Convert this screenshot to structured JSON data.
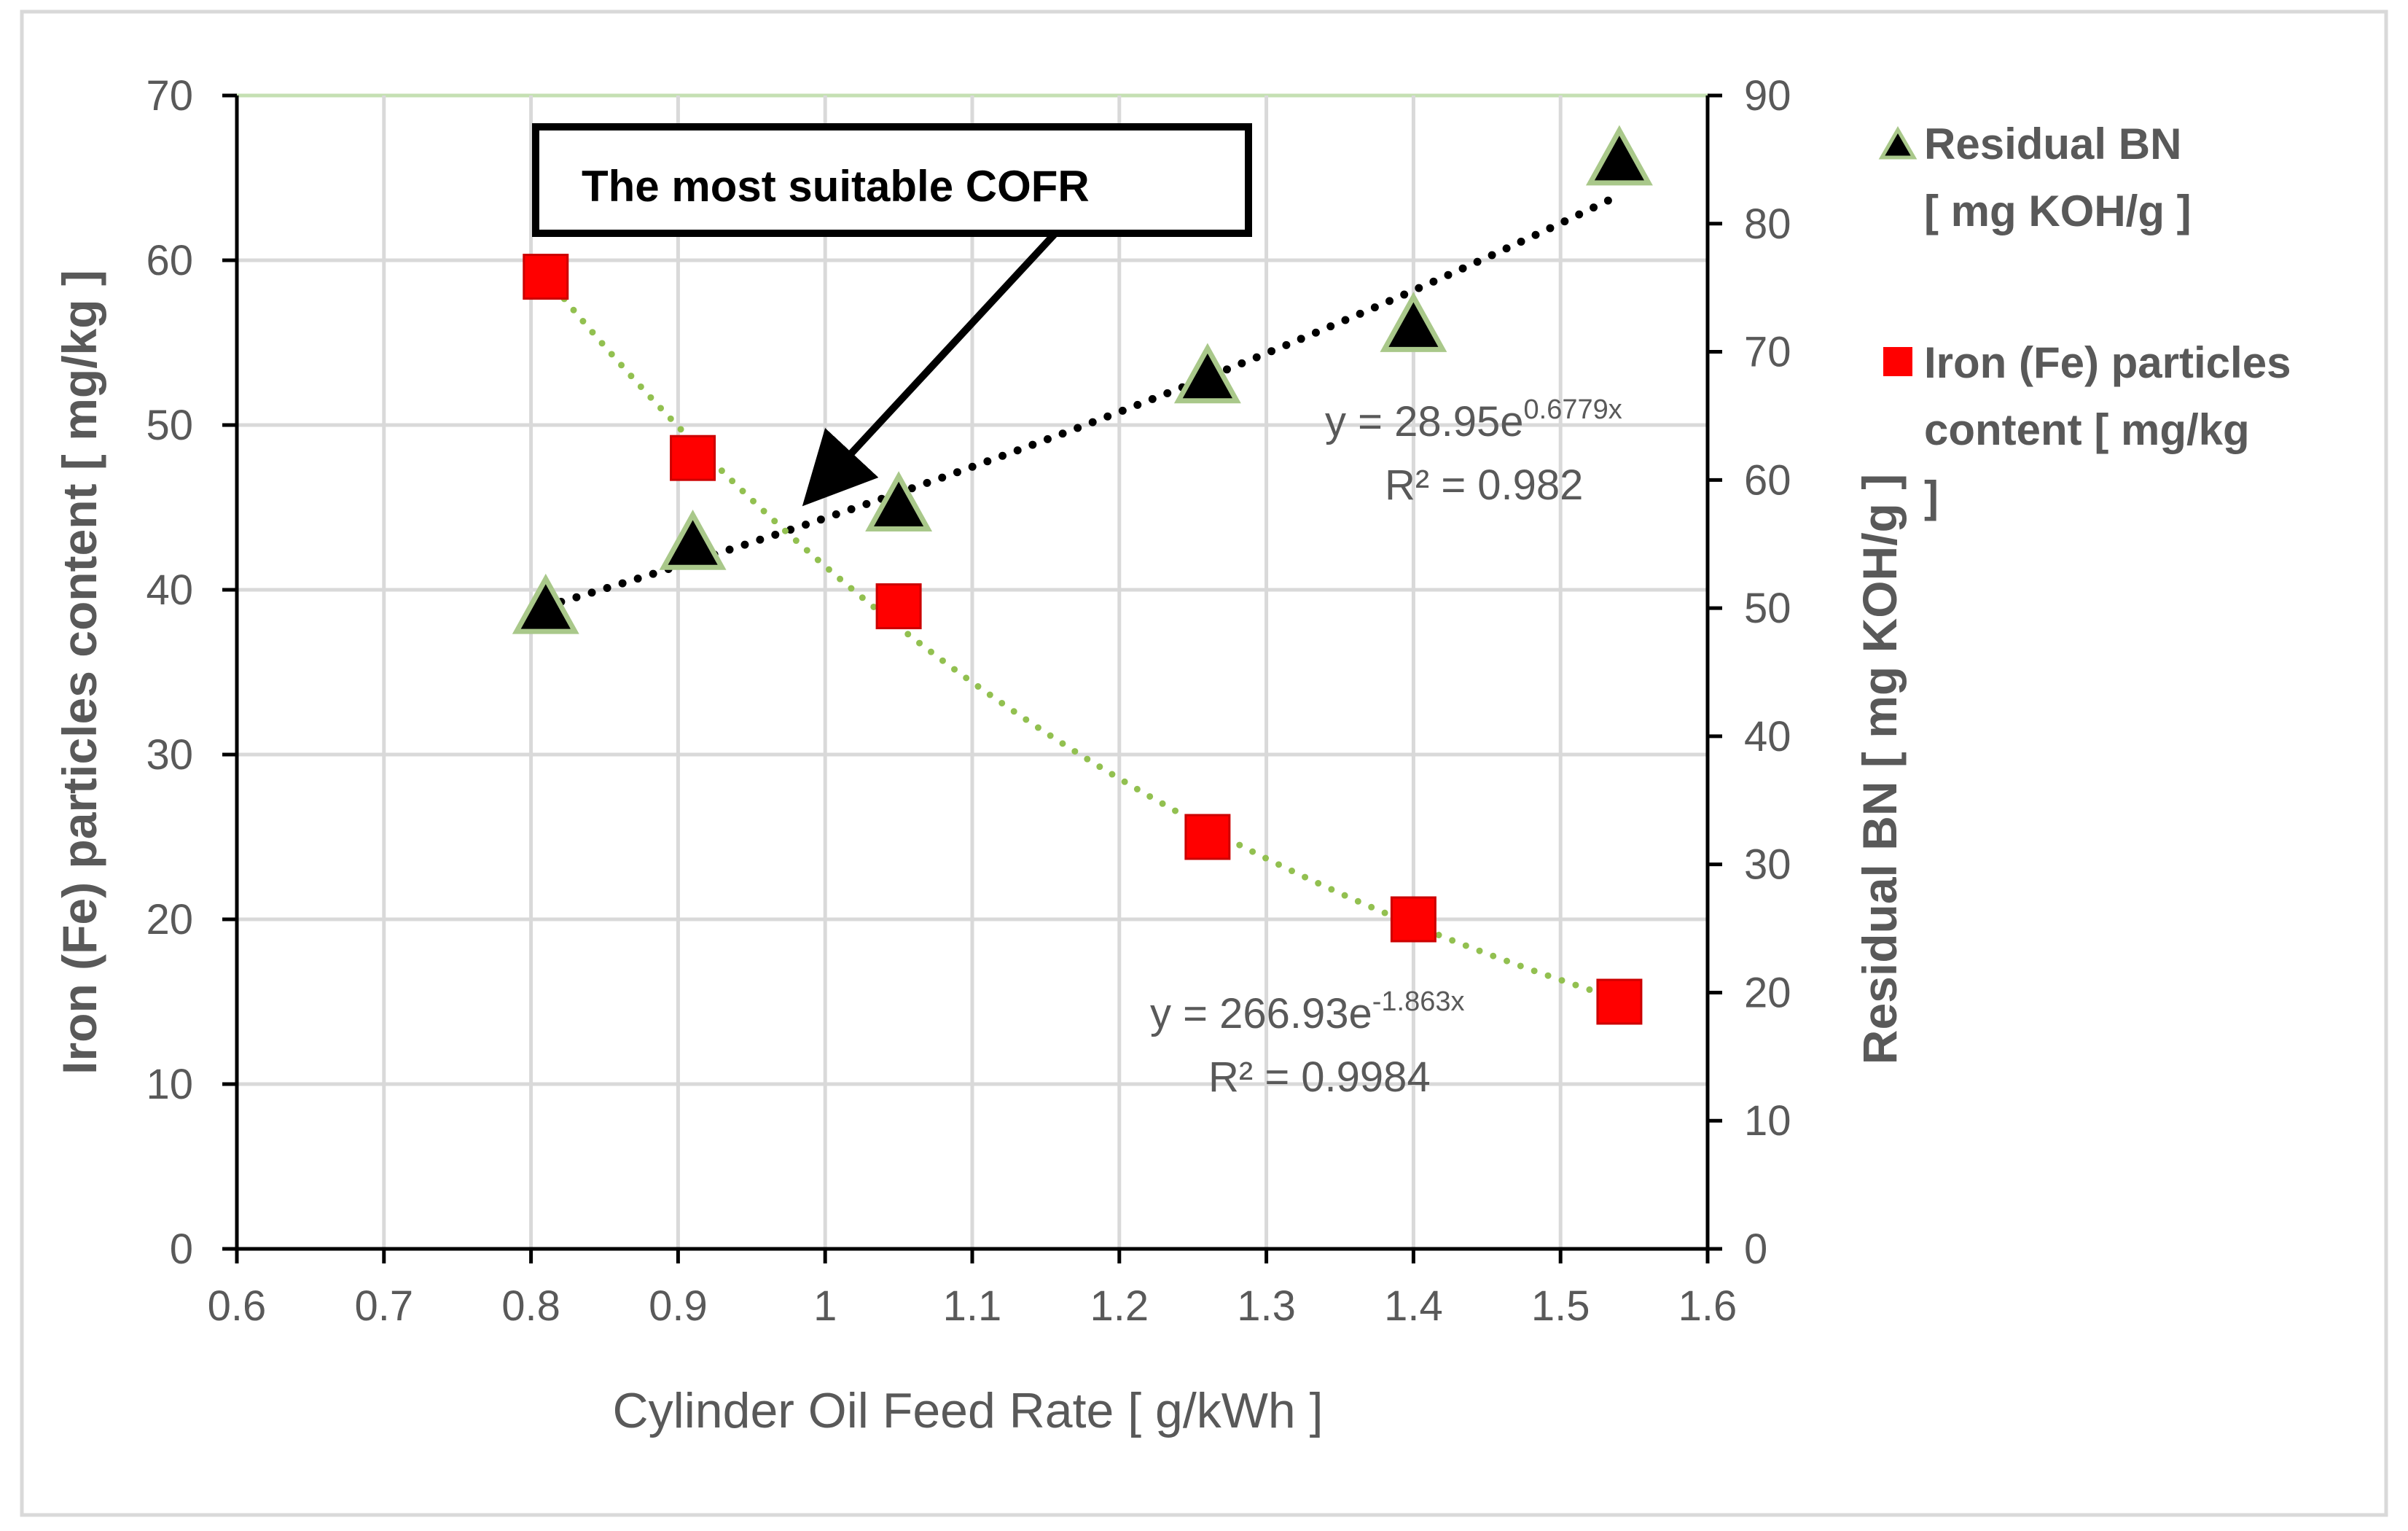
{
  "chart_data": {
    "type": "scatter",
    "title": "",
    "xlabel": "Cylinder Oil Feed Rate  [ g/kWh ]",
    "ylabel_left": "Iron (Fe) particles content [ mg/kg ]",
    "ylabel_right": "Residual BN [ mg KOH/g ]",
    "xlim": [
      0.6,
      1.6
    ],
    "x_ticks": [
      "0.6",
      "0.7",
      "0.8",
      "0.9",
      "1",
      "1.1",
      "1.2",
      "1.3",
      "1.4",
      "1.5",
      "1.6"
    ],
    "ylim_left": [
      0,
      70
    ],
    "y_ticks_left": [
      "0",
      "10",
      "20",
      "30",
      "40",
      "50",
      "60",
      "70"
    ],
    "ylim_right": [
      0,
      90
    ],
    "y_ticks_right": [
      "0",
      "10",
      "20",
      "30",
      "40",
      "50",
      "60",
      "70",
      "80",
      "90"
    ],
    "grid": true,
    "legend_position": "right",
    "series": [
      {
        "name": "Residual BN [ mg KOH/g ]",
        "legend_lines": [
          "Residual BN",
          "[ mg KOH/g ]"
        ],
        "axis": "right",
        "marker": "triangle",
        "color": "#000000",
        "edge_color": "#a9c88a",
        "x": [
          0.81,
          0.91,
          1.05,
          1.26,
          1.4,
          1.54
        ],
        "y": [
          50,
          55,
          58,
          68,
          72,
          85
        ],
        "trendline": {
          "type": "exponential",
          "a": 28.95,
          "b": 0.6779,
          "color": "#000000",
          "style": "dotted",
          "equation_prefix": "y = 28.95e",
          "equation_exponent": "0.6779x",
          "r2_text": "R² = 0.982"
        }
      },
      {
        "name": "Iron (Fe) particles content  [ mg/kg ]",
        "legend_lines": [
          "Iron (Fe) particles",
          "content  [ mg/kg",
          "]"
        ],
        "axis": "left",
        "marker": "square",
        "color": "#ff0000",
        "x": [
          0.81,
          0.91,
          1.05,
          1.26,
          1.4,
          1.54
        ],
        "y": [
          59,
          48,
          39,
          25,
          20,
          15
        ],
        "trendline": {
          "type": "exponential",
          "a": 266.93,
          "b": -1.863,
          "color": "#92c050",
          "style": "dotted",
          "equation_prefix": "y = 266.93e",
          "equation_exponent": "-1.863x",
          "r2_text": "R² = 0.9984"
        }
      }
    ],
    "annotations": [
      {
        "text": "The most suitable COFR",
        "points_to": {
          "x": 0.99,
          "y_left": 46
        }
      }
    ]
  },
  "colors": {
    "grid": "#d9d9d9",
    "axis": "#000000",
    "top_line": "#c5e0b3",
    "frame": "#d9d9d9",
    "text": "#595959"
  }
}
